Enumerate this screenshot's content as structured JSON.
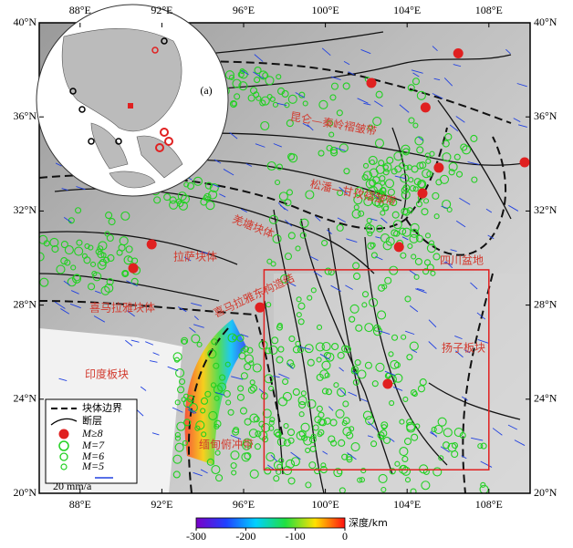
{
  "map": {
    "lon_ticks": [
      {
        "value": 88,
        "label": "88°E"
      },
      {
        "value": 92,
        "label": "92°E"
      },
      {
        "value": 96,
        "label": "96°E"
      },
      {
        "value": 100,
        "label": "100°E"
      },
      {
        "value": 104,
        "label": "104°E"
      },
      {
        "value": 108,
        "label": "108°E"
      }
    ],
    "lat_ticks": [
      {
        "value": 40,
        "label": "40°N"
      },
      {
        "value": 36,
        "label": "36°N"
      },
      {
        "value": 32,
        "label": "32°N"
      },
      {
        "value": 28,
        "label": "28°N"
      },
      {
        "value": 24,
        "label": "24°N"
      },
      {
        "value": 20,
        "label": "20°N"
      }
    ],
    "region_labels": [
      "昆仑—秦岭褶皱带",
      "松潘—甘孜褶皱带",
      "羌塘块体",
      "拉萨块体",
      "喜马拉雅块体",
      "喜马拉雅东构造结",
      "四川盆地",
      "扬子板块",
      "印度板块",
      "缅甸俯冲带"
    ],
    "inset_label": "(a)",
    "study_box": {
      "lon": [
        97,
        108
      ],
      "lat": [
        21,
        29.5
      ]
    },
    "large_quakes": [
      {
        "lon": 106.5,
        "lat": 38.7
      },
      {
        "lon": 102.25,
        "lat": 37.44
      },
      {
        "lon": 104.9,
        "lat": 36.4
      },
      {
        "lon": 105.55,
        "lat": 33.84
      },
      {
        "lon": 104.75,
        "lat": 32.75
      },
      {
        "lon": 109.75,
        "lat": 34.07
      },
      {
        "lon": 103.6,
        "lat": 30.47
      },
      {
        "lon": 91.5,
        "lat": 30.58
      },
      {
        "lon": 90.6,
        "lat": 29.57
      },
      {
        "lon": 96.8,
        "lat": 27.9
      },
      {
        "lon": 103.05,
        "lat": 24.65
      }
    ],
    "legend": [
      "块体边界",
      "断层",
      "M≥8",
      "M=7",
      "M=6",
      "M=5",
      "20 mm/a"
    ],
    "colorbar": {
      "title": "深度/km",
      "ticks": [
        -300,
        -200,
        -100,
        0
      ]
    }
  }
}
